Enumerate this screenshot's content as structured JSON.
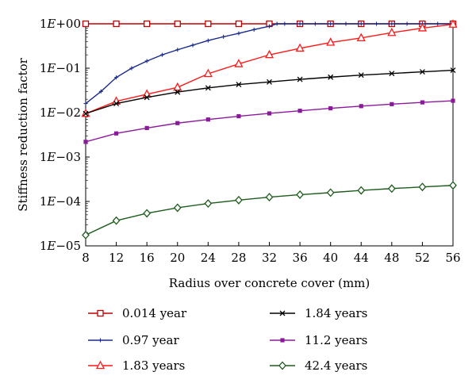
{
  "chart_data": {
    "type": "line",
    "xlabel": "Radius over concrete cover (mm)",
    "ylabel": "Stiffness reduction factor",
    "xlim": [
      8,
      56
    ],
    "ylim": [
      1e-05,
      1
    ],
    "yscale": "log",
    "x_ticks": [
      "8",
      "12",
      "16",
      "20",
      "24",
      "28",
      "32",
      "36",
      "40",
      "44",
      "48",
      "52",
      "56"
    ],
    "y_ticks": [
      {
        "value": 1,
        "mantissa": "1",
        "e": "E",
        "exp": "+00"
      },
      {
        "value": 0.1,
        "mantissa": "1",
        "e": "E",
        "exp": "−01"
      },
      {
        "value": 0.01,
        "mantissa": "1",
        "e": "E",
        "exp": "−02"
      },
      {
        "value": 0.001,
        "mantissa": "1",
        "e": "E",
        "exp": "−03"
      },
      {
        "value": 0.0001,
        "mantissa": "1",
        "e": "E",
        "exp": "−04"
      },
      {
        "value": 1e-05,
        "mantissa": "1",
        "e": "E",
        "exp": "−05"
      }
    ],
    "grid": false,
    "legend_position": "bottom",
    "series": [
      {
        "name": "0.014 year",
        "color": "#c00000",
        "marker": "square",
        "x": [
          8,
          12,
          16,
          20,
          24,
          28,
          32,
          36,
          40,
          44,
          48,
          52,
          56
        ],
        "y": [
          1,
          1,
          1,
          1,
          1,
          1,
          1,
          1,
          1,
          1,
          1,
          1,
          1
        ]
      },
      {
        "name": "0.97 year",
        "color": "#1a2a8c",
        "marker": "plus",
        "x": [
          8,
          10,
          12,
          14,
          16,
          18,
          20,
          22,
          24,
          26,
          28,
          30,
          32,
          33,
          34,
          36,
          38,
          40,
          42,
          44,
          46,
          48,
          50,
          52,
          54,
          56
        ],
        "y": [
          0.016,
          0.03,
          0.062,
          0.1,
          0.145,
          0.2,
          0.26,
          0.33,
          0.42,
          0.51,
          0.61,
          0.74,
          0.88,
          1,
          1,
          1,
          1,
          1,
          1,
          1,
          1,
          1,
          1,
          1,
          1,
          1
        ]
      },
      {
        "name": "1.83 years",
        "color": "#ff1a1a",
        "marker": "triangle",
        "x": [
          8,
          12,
          16,
          20,
          24,
          28,
          32,
          36,
          40,
          44,
          48,
          52,
          56
        ],
        "y": [
          0.0095,
          0.018,
          0.026,
          0.037,
          0.075,
          0.125,
          0.2,
          0.28,
          0.38,
          0.48,
          0.63,
          0.8,
          0.97
        ]
      },
      {
        "name": "1.84 years",
        "color": "#000000",
        "marker": "x",
        "x": [
          8,
          12,
          16,
          20,
          24,
          28,
          32,
          36,
          40,
          44,
          48,
          52,
          56
        ],
        "y": [
          0.0095,
          0.016,
          0.022,
          0.029,
          0.036,
          0.043,
          0.049,
          0.056,
          0.063,
          0.07,
          0.076,
          0.083,
          0.09
        ]
      },
      {
        "name": "11.2 years",
        "color": "#8b1a9b",
        "marker": "square-small",
        "x": [
          8,
          12,
          16,
          20,
          24,
          28,
          32,
          36,
          40,
          44,
          48,
          52,
          56
        ],
        "y": [
          0.0022,
          0.0034,
          0.0045,
          0.0058,
          0.007,
          0.0083,
          0.0096,
          0.011,
          0.0125,
          0.014,
          0.0155,
          0.017,
          0.0185
        ]
      },
      {
        "name": "42.4 years",
        "color": "#1d5c1d",
        "marker": "diamond",
        "x": [
          8,
          12,
          16,
          20,
          24,
          28,
          32,
          36,
          40,
          44,
          48,
          52,
          56
        ],
        "y": [
          1.75e-05,
          3.7e-05,
          5.4e-05,
          7.2e-05,
          9e-05,
          0.000107,
          0.000125,
          0.000142,
          0.000158,
          0.000177,
          0.000195,
          0.000212,
          0.00023
        ]
      }
    ]
  }
}
